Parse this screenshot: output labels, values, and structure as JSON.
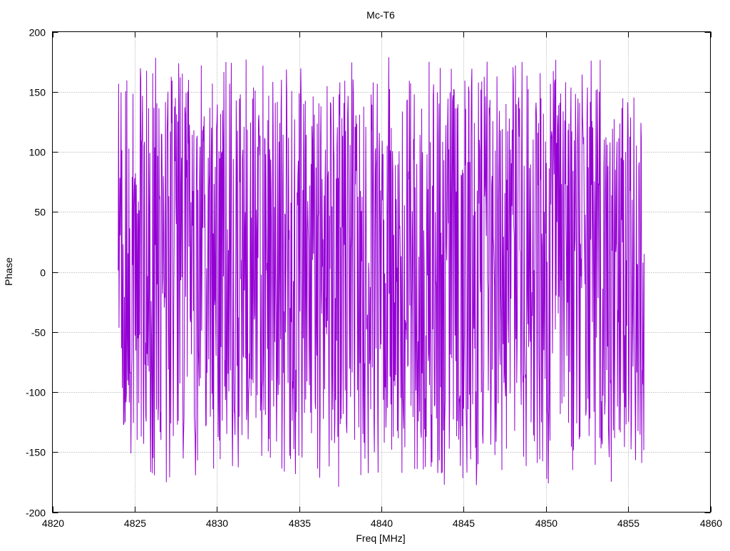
{
  "chart_data": {
    "type": "line",
    "title": "Mc-T6",
    "xlabel": "Freq [MHz]",
    "ylabel": "Phase",
    "xlim": [
      4820,
      4860
    ],
    "ylim": [
      -200,
      200
    ],
    "xticks": [
      4820,
      4825,
      4830,
      4835,
      4840,
      4845,
      4850,
      4855,
      4860
    ],
    "yticks": [
      -200,
      -150,
      -100,
      -50,
      0,
      50,
      100,
      150,
      200
    ],
    "grid": true,
    "series": [
      {
        "color": "#9400d3",
        "x_start": 4824.0,
        "x_end": 4856.0,
        "samples": 1280,
        "x_step": 0.025,
        "y_range": [
          -180,
          180
        ],
        "y_end": 15
      }
    ]
  }
}
